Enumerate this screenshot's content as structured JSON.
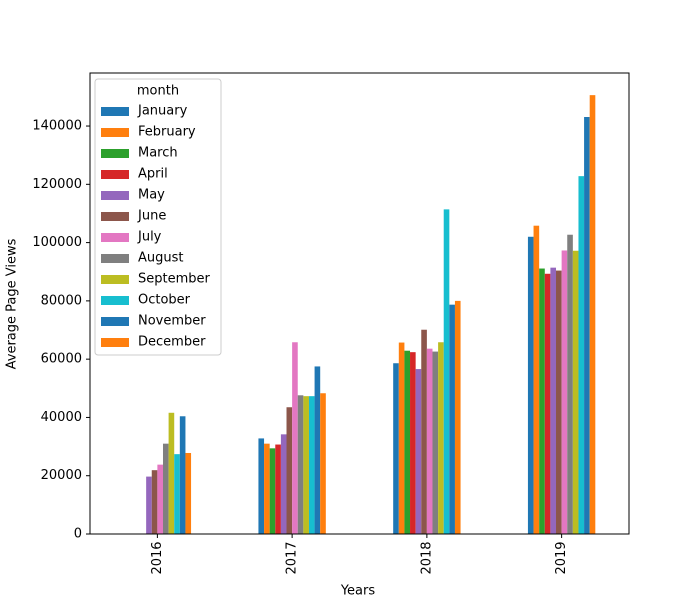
{
  "chart_data": {
    "type": "bar",
    "x_label": "Years",
    "y_label": "Average Page Views",
    "categories": [
      "2016",
      "2017",
      "2018",
      "2019"
    ],
    "legend_title": "month",
    "legend": "upper left",
    "ylim": [
      0,
      158200
    ],
    "yticks": [
      0,
      20000,
      40000,
      60000,
      80000,
      100000,
      120000,
      140000
    ],
    "series": [
      {
        "name": "January",
        "color": "#1f77b4",
        "values": [
          null,
          32800,
          58600,
          102000
        ]
      },
      {
        "name": "February",
        "color": "#ff7f0e",
        "values": [
          null,
          31000,
          65700,
          105800
        ]
      },
      {
        "name": "March",
        "color": "#2ca02c",
        "values": [
          null,
          29400,
          62900,
          91100
        ]
      },
      {
        "name": "April",
        "color": "#d62728",
        "values": [
          null,
          30700,
          62400,
          89300
        ]
      },
      {
        "name": "May",
        "color": "#9467bd",
        "values": [
          19700,
          34200,
          56600,
          91400
        ]
      },
      {
        "name": "June",
        "color": "#8c564b",
        "values": [
          21900,
          43500,
          70100,
          90400
        ]
      },
      {
        "name": "July",
        "color": "#e377c2",
        "values": [
          23800,
          65800,
          63600,
          97300
        ]
      },
      {
        "name": "August",
        "color": "#7f7f7f",
        "values": [
          31000,
          47600,
          62600,
          102700
        ]
      },
      {
        "name": "September",
        "color": "#bcbd22",
        "values": [
          41600,
          47300,
          65800,
          97200
        ]
      },
      {
        "name": "October",
        "color": "#17becf",
        "values": [
          27400,
          47300,
          111400,
          122800
        ]
      },
      {
        "name": "November",
        "color": "#1f77b4",
        "values": [
          40400,
          57500,
          78700,
          143100
        ]
      },
      {
        "name": "December",
        "color": "#ff7f0e",
        "values": [
          27800,
          48300,
          80000,
          150600
        ]
      }
    ]
  }
}
